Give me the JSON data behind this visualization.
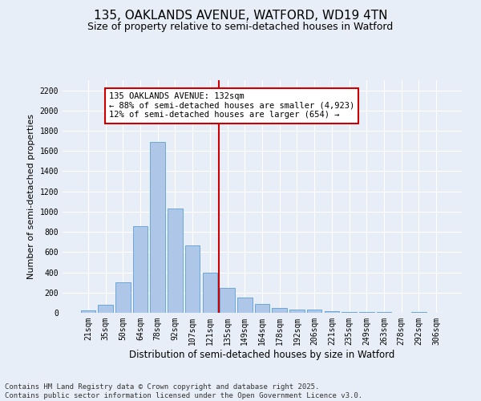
{
  "title": "135, OAKLANDS AVENUE, WATFORD, WD19 4TN",
  "subtitle": "Size of property relative to semi-detached houses in Watford",
  "xlabel": "Distribution of semi-detached houses by size in Watford",
  "ylabel": "Number of semi-detached properties",
  "categories": [
    "21sqm",
    "35sqm",
    "50sqm",
    "64sqm",
    "78sqm",
    "92sqm",
    "107sqm",
    "121sqm",
    "135sqm",
    "149sqm",
    "164sqm",
    "178sqm",
    "192sqm",
    "206sqm",
    "221sqm",
    "235sqm",
    "249sqm",
    "263sqm",
    "278sqm",
    "292sqm",
    "306sqm"
  ],
  "values": [
    20,
    80,
    305,
    860,
    1690,
    1035,
    670,
    400,
    245,
    150,
    85,
    45,
    35,
    30,
    15,
    10,
    5,
    5,
    3,
    5,
    2
  ],
  "bar_color": "#aec6e8",
  "bar_edge_color": "#5a9fd4",
  "vline_index": 8,
  "vline_color": "#cc0000",
  "annotation_text": "135 OAKLANDS AVENUE: 132sqm\n← 88% of semi-detached houses are smaller (4,923)\n12% of semi-detached houses are larger (654) →",
  "annotation_box_color": "#ffffff",
  "annotation_box_edge": "#cc0000",
  "ylim": [
    0,
    2300
  ],
  "yticks": [
    0,
    200,
    400,
    600,
    800,
    1000,
    1200,
    1400,
    1600,
    1800,
    2000,
    2200
  ],
  "bg_color": "#e8eef7",
  "grid_color": "#ffffff",
  "footer": "Contains HM Land Registry data © Crown copyright and database right 2025.\nContains public sector information licensed under the Open Government Licence v3.0.",
  "title_fontsize": 11,
  "subtitle_fontsize": 9,
  "xlabel_fontsize": 8.5,
  "ylabel_fontsize": 8,
  "tick_fontsize": 7,
  "annotation_fontsize": 7.5,
  "footer_fontsize": 6.5
}
